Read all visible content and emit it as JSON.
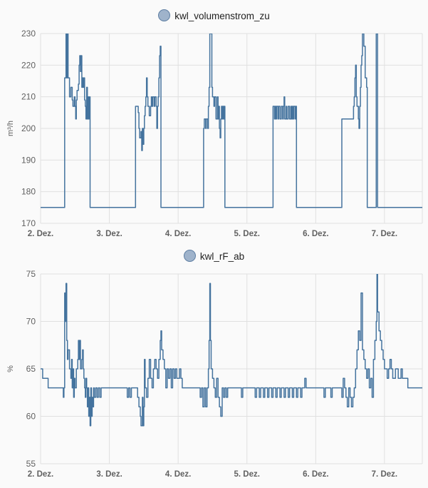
{
  "chart_data": [
    {
      "type": "line",
      "series": [
        {
          "name": "kwl_volumenstrom_zu",
          "color": "#44739e"
        }
      ],
      "ylabel": "m³/h",
      "ylim": [
        170,
        230
      ],
      "yticks": [
        "230",
        "220",
        "210",
        "200",
        "190",
        "180",
        "170"
      ],
      "xlim": [
        2.0,
        7.55
      ],
      "xticks": [
        "2. Dez.",
        "3. Dez.",
        "4. Dez.",
        "5. Dez.",
        "6. Dez.",
        "7. Dez."
      ],
      "grid": true,
      "legend": "top-center",
      "points": [
        [
          2.0,
          175
        ],
        [
          2.35,
          175
        ],
        [
          2.35,
          216
        ],
        [
          2.36,
          216
        ],
        [
          2.37,
          230
        ],
        [
          2.38,
          216
        ],
        [
          2.39,
          230
        ],
        [
          2.4,
          216
        ],
        [
          2.42,
          210
        ],
        [
          2.44,
          213
        ],
        [
          2.46,
          209
        ],
        [
          2.47,
          207
        ],
        [
          2.49,
          210
        ],
        [
          2.5,
          207
        ],
        [
          2.51,
          203
        ],
        [
          2.52,
          209
        ],
        [
          2.53,
          212
        ],
        [
          2.55,
          214
        ],
        [
          2.56,
          220
        ],
        [
          2.57,
          223
        ],
        [
          2.58,
          218
        ],
        [
          2.59,
          223
        ],
        [
          2.6,
          213
        ],
        [
          2.61,
          216
        ],
        [
          2.62,
          213
        ],
        [
          2.63,
          216
        ],
        [
          2.64,
          209
        ],
        [
          2.65,
          207
        ],
        [
          2.66,
          203
        ],
        [
          2.67,
          213
        ],
        [
          2.68,
          203
        ],
        [
          2.69,
          210
        ],
        [
          2.7,
          203
        ],
        [
          2.71,
          210
        ],
        [
          2.72,
          175
        ],
        [
          3.0,
          175
        ],
        [
          3.38,
          175
        ],
        [
          3.38,
          207
        ],
        [
          3.42,
          205
        ],
        [
          3.43,
          200
        ],
        [
          3.44,
          197
        ],
        [
          3.46,
          199
        ],
        [
          3.47,
          193
        ],
        [
          3.48,
          200
        ],
        [
          3.49,
          195
        ],
        [
          3.5,
          200
        ],
        [
          3.51,
          204
        ],
        [
          3.52,
          207
        ],
        [
          3.53,
          210
        ],
        [
          3.54,
          216
        ],
        [
          3.55,
          210
        ],
        [
          3.56,
          207
        ],
        [
          3.58,
          204
        ],
        [
          3.6,
          207
        ],
        [
          3.61,
          210
        ],
        [
          3.62,
          207
        ],
        [
          3.63,
          210
        ],
        [
          3.65,
          207
        ],
        [
          3.66,
          210
        ],
        [
          3.68,
          207
        ],
        [
          3.69,
          200
        ],
        [
          3.7,
          207
        ],
        [
          3.71,
          210
        ],
        [
          3.72,
          216
        ],
        [
          3.73,
          223
        ],
        [
          3.74,
          226
        ],
        [
          3.75,
          175
        ],
        [
          4.0,
          175
        ],
        [
          4.37,
          175
        ],
        [
          4.37,
          200
        ],
        [
          4.38,
          203
        ],
        [
          4.4,
          200
        ],
        [
          4.41,
          203
        ],
        [
          4.43,
          200
        ],
        [
          4.44,
          207
        ],
        [
          4.45,
          213
        ],
        [
          4.46,
          230
        ],
        [
          4.48,
          230
        ],
        [
          4.49,
          213
        ],
        [
          4.5,
          210
        ],
        [
          4.52,
          207
        ],
        [
          4.53,
          210
        ],
        [
          4.55,
          203
        ],
        [
          4.57,
          210
        ],
        [
          4.58,
          203
        ],
        [
          4.59,
          207
        ],
        [
          4.6,
          200
        ],
        [
          4.61,
          197
        ],
        [
          4.62,
          203
        ],
        [
          4.63,
          207
        ],
        [
          4.64,
          203
        ],
        [
          4.65,
          207
        ],
        [
          4.66,
          203
        ],
        [
          4.67,
          207
        ],
        [
          4.68,
          175
        ],
        [
          5.0,
          175
        ],
        [
          5.38,
          175
        ],
        [
          5.38,
          207
        ],
        [
          5.4,
          203
        ],
        [
          5.41,
          207
        ],
        [
          5.42,
          203
        ],
        [
          5.43,
          207
        ],
        [
          5.45,
          203
        ],
        [
          5.46,
          207
        ],
        [
          5.48,
          203
        ],
        [
          5.5,
          207
        ],
        [
          5.52,
          203
        ],
        [
          5.53,
          207
        ],
        [
          5.54,
          210
        ],
        [
          5.55,
          203
        ],
        [
          5.57,
          207
        ],
        [
          5.58,
          203
        ],
        [
          5.6,
          207
        ],
        [
          5.62,
          203
        ],
        [
          5.64,
          207
        ],
        [
          5.65,
          203
        ],
        [
          5.66,
          207
        ],
        [
          5.67,
          203
        ],
        [
          5.68,
          207
        ],
        [
          5.7,
          203
        ],
        [
          5.71,
          207
        ],
        [
          5.72,
          175
        ],
        [
          6.0,
          175
        ],
        [
          6.38,
          175
        ],
        [
          6.38,
          203
        ],
        [
          6.55,
          203
        ],
        [
          6.55,
          207
        ],
        [
          6.56,
          210
        ],
        [
          6.57,
          216
        ],
        [
          6.58,
          220
        ],
        [
          6.59,
          210
        ],
        [
          6.6,
          207
        ],
        [
          6.62,
          203
        ],
        [
          6.63,
          200
        ],
        [
          6.64,
          207
        ],
        [
          6.65,
          213
        ],
        [
          6.66,
          220
        ],
        [
          6.67,
          223
        ],
        [
          6.68,
          230
        ],
        [
          6.7,
          226
        ],
        [
          6.72,
          216
        ],
        [
          6.74,
          213
        ],
        [
          6.75,
          175
        ],
        [
          6.87,
          175
        ],
        [
          6.88,
          230
        ],
        [
          6.9,
          175
        ],
        [
          7.55,
          175
        ]
      ]
    },
    {
      "type": "line",
      "series": [
        {
          "name": "kwl_rF_ab",
          "color": "#44739e"
        }
      ],
      "ylabel": "%",
      "ylim": [
        55,
        75
      ],
      "yticks": [
        "75",
        "70",
        "65",
        "60",
        "55"
      ],
      "xlim": [
        2.0,
        7.55
      ],
      "xticks": [
        "2. Dez.",
        "3. Dez.",
        "4. Dez.",
        "5. Dez.",
        "6. Dez.",
        "7. Dez."
      ],
      "grid": true,
      "legend": "top-center",
      "points": [
        [
          2.0,
          65
        ],
        [
          2.02,
          65
        ],
        [
          2.03,
          64
        ],
        [
          2.1,
          64
        ],
        [
          2.11,
          63
        ],
        [
          2.32,
          63
        ],
        [
          2.33,
          62
        ],
        [
          2.34,
          63
        ],
        [
          2.35,
          73
        ],
        [
          2.36,
          70
        ],
        [
          2.37,
          74
        ],
        [
          2.38,
          68
        ],
        [
          2.39,
          66
        ],
        [
          2.4,
          67
        ],
        [
          2.42,
          65
        ],
        [
          2.44,
          64
        ],
        [
          2.45,
          66
        ],
        [
          2.46,
          63
        ],
        [
          2.47,
          65
        ],
        [
          2.48,
          62
        ],
        [
          2.49,
          64
        ],
        [
          2.5,
          63
        ],
        [
          2.52,
          65
        ],
        [
          2.54,
          66
        ],
        [
          2.55,
          68
        ],
        [
          2.56,
          66
        ],
        [
          2.57,
          68
        ],
        [
          2.58,
          65
        ],
        [
          2.6,
          66
        ],
        [
          2.61,
          67
        ],
        [
          2.62,
          65
        ],
        [
          2.63,
          64
        ],
        [
          2.64,
          63
        ],
        [
          2.65,
          62
        ],
        [
          2.66,
          64
        ],
        [
          2.67,
          63
        ],
        [
          2.68,
          61
        ],
        [
          2.69,
          63
        ],
        [
          2.7,
          60
        ],
        [
          2.71,
          62
        ],
        [
          2.72,
          59
        ],
        [
          2.73,
          63
        ],
        [
          2.74,
          60
        ],
        [
          2.75,
          62
        ],
        [
          2.76,
          61
        ],
        [
          2.77,
          63
        ],
        [
          2.78,
          62
        ],
        [
          2.8,
          63
        ],
        [
          2.82,
          62
        ],
        [
          2.84,
          63
        ],
        [
          2.86,
          62
        ],
        [
          2.88,
          63
        ],
        [
          3.25,
          63
        ],
        [
          3.26,
          62
        ],
        [
          3.28,
          63
        ],
        [
          3.3,
          62
        ],
        [
          3.32,
          63
        ],
        [
          3.4,
          63
        ],
        [
          3.41,
          62
        ],
        [
          3.43,
          61
        ],
        [
          3.45,
          60
        ],
        [
          3.46,
          59
        ],
        [
          3.48,
          62
        ],
        [
          3.49,
          59
        ],
        [
          3.5,
          61
        ],
        [
          3.51,
          66
        ],
        [
          3.52,
          63
        ],
        [
          3.54,
          62
        ],
        [
          3.56,
          64
        ],
        [
          3.58,
          66
        ],
        [
          3.6,
          64
        ],
        [
          3.62,
          63
        ],
        [
          3.64,
          65
        ],
        [
          3.66,
          66
        ],
        [
          3.68,
          65
        ],
        [
          3.7,
          64
        ],
        [
          3.72,
          66
        ],
        [
          3.74,
          68
        ],
        [
          3.75,
          69
        ],
        [
          3.76,
          67
        ],
        [
          3.78,
          66
        ],
        [
          3.8,
          65
        ],
        [
          3.82,
          63
        ],
        [
          3.84,
          65
        ],
        [
          3.86,
          64
        ],
        [
          3.88,
          65
        ],
        [
          3.9,
          63
        ],
        [
          3.92,
          65
        ],
        [
          3.94,
          64
        ],
        [
          3.96,
          65
        ],
        [
          3.98,
          64
        ],
        [
          4.0,
          64
        ],
        [
          4.02,
          65
        ],
        [
          4.04,
          64
        ],
        [
          4.06,
          63
        ],
        [
          4.3,
          63
        ],
        [
          4.32,
          62
        ],
        [
          4.34,
          63
        ],
        [
          4.36,
          61
        ],
        [
          4.38,
          63
        ],
        [
          4.4,
          61
        ],
        [
          4.42,
          63
        ],
        [
          4.44,
          65
        ],
        [
          4.45,
          68
        ],
        [
          4.46,
          74
        ],
        [
          4.47,
          68
        ],
        [
          4.48,
          65
        ],
        [
          4.5,
          64
        ],
        [
          4.52,
          63
        ],
        [
          4.54,
          62
        ],
        [
          4.56,
          64
        ],
        [
          4.58,
          62
        ],
        [
          4.6,
          61
        ],
        [
          4.62,
          60
        ],
        [
          4.64,
          63
        ],
        [
          4.66,
          62
        ],
        [
          4.68,
          63
        ],
        [
          4.7,
          62
        ],
        [
          4.72,
          63
        ],
        [
          4.9,
          63
        ],
        [
          4.92,
          62
        ],
        [
          4.94,
          63
        ],
        [
          5.1,
          63
        ],
        [
          5.12,
          62
        ],
        [
          5.14,
          63
        ],
        [
          5.18,
          62
        ],
        [
          5.2,
          63
        ],
        [
          5.24,
          62
        ],
        [
          5.26,
          63
        ],
        [
          5.3,
          62
        ],
        [
          5.32,
          63
        ],
        [
          5.36,
          62
        ],
        [
          5.38,
          63
        ],
        [
          5.42,
          62
        ],
        [
          5.44,
          63
        ],
        [
          5.48,
          62
        ],
        [
          5.5,
          63
        ],
        [
          5.54,
          62
        ],
        [
          5.56,
          63
        ],
        [
          5.6,
          62
        ],
        [
          5.62,
          63
        ],
        [
          5.66,
          62
        ],
        [
          5.68,
          63
        ],
        [
          5.72,
          62
        ],
        [
          5.74,
          63
        ],
        [
          5.78,
          62
        ],
        [
          5.8,
          63
        ],
        [
          5.84,
          64
        ],
        [
          5.86,
          63
        ],
        [
          6.1,
          63
        ],
        [
          6.12,
          62
        ],
        [
          6.14,
          63
        ],
        [
          6.2,
          63
        ],
        [
          6.22,
          62
        ],
        [
          6.24,
          63
        ],
        [
          6.36,
          63
        ],
        [
          6.38,
          62
        ],
        [
          6.4,
          64
        ],
        [
          6.42,
          63
        ],
        [
          6.44,
          62
        ],
        [
          6.46,
          61
        ],
        [
          6.48,
          63
        ],
        [
          6.5,
          62
        ],
        [
          6.52,
          61
        ],
        [
          6.54,
          62
        ],
        [
          6.56,
          63
        ],
        [
          6.58,
          65
        ],
        [
          6.6,
          67
        ],
        [
          6.62,
          69
        ],
        [
          6.64,
          68
        ],
        [
          6.66,
          73
        ],
        [
          6.68,
          67
        ],
        [
          6.7,
          66
        ],
        [
          6.72,
          65
        ],
        [
          6.74,
          64
        ],
        [
          6.76,
          65
        ],
        [
          6.78,
          63
        ],
        [
          6.8,
          64
        ],
        [
          6.82,
          62
        ],
        [
          6.84,
          66
        ],
        [
          6.86,
          68
        ],
        [
          6.88,
          70
        ],
        [
          6.89,
          75
        ],
        [
          6.9,
          71
        ],
        [
          6.92,
          69
        ],
        [
          6.94,
          68
        ],
        [
          6.96,
          67
        ],
        [
          6.98,
          66
        ],
        [
          7.0,
          65
        ],
        [
          7.04,
          64
        ],
        [
          7.06,
          65
        ],
        [
          7.08,
          66
        ],
        [
          7.1,
          65
        ],
        [
          7.12,
          64
        ],
        [
          7.16,
          65
        ],
        [
          7.2,
          64
        ],
        [
          7.24,
          65
        ],
        [
          7.26,
          64
        ],
        [
          7.3,
          64
        ],
        [
          7.34,
          63
        ],
        [
          7.55,
          63
        ]
      ]
    }
  ]
}
